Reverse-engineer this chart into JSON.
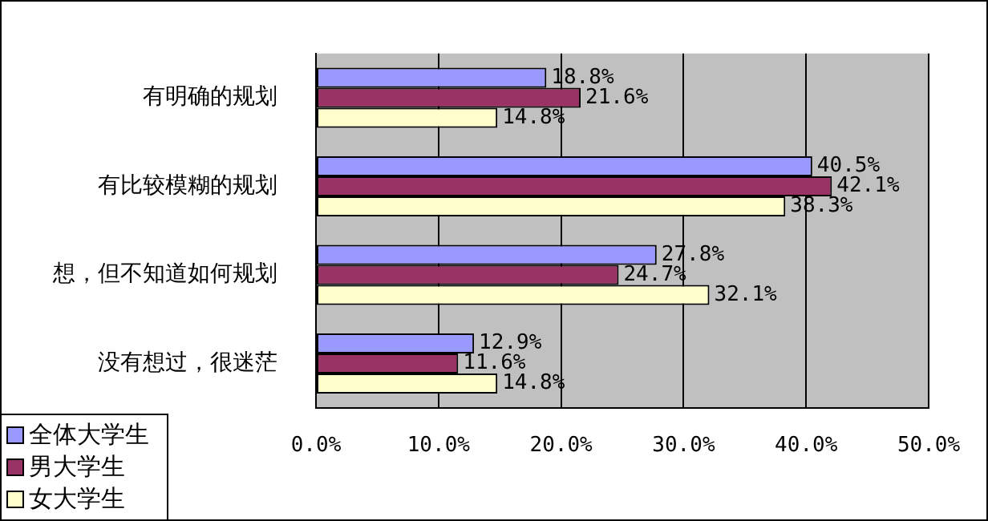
{
  "chart_data": {
    "type": "bar",
    "orientation": "horizontal",
    "categories": [
      "有明确的规划",
      "有比较模糊的规划",
      "想，但不知道如何规划",
      "没有想过，很迷茫"
    ],
    "series": [
      {
        "name": "全体大学生",
        "color": "#9999ff",
        "values": [
          18.8,
          40.5,
          27.8,
          12.9
        ],
        "value_labels": [
          "18.8%",
          "40.5%",
          "27.8%",
          "12.9%"
        ]
      },
      {
        "name": "男大学生",
        "color": "#993366",
        "values": [
          21.6,
          42.1,
          24.7,
          11.6
        ],
        "value_labels": [
          "21.6%",
          "42.1%",
          "24.7%",
          "11.6%"
        ]
      },
      {
        "name": "女大学生",
        "color": "#ffffcc",
        "values": [
          14.8,
          38.3,
          32.1,
          14.8
        ],
        "value_labels": [
          "14.8%",
          "38.3%",
          "32.1%",
          "14.8%"
        ]
      }
    ],
    "xlim": [
      0,
      50
    ],
    "xticks": [
      {
        "value": 0,
        "label": "0.0%"
      },
      {
        "value": 10,
        "label": "10.0%"
      },
      {
        "value": 20,
        "label": "20.0%"
      },
      {
        "value": 30,
        "label": "30.0%"
      },
      {
        "value": 40,
        "label": "40.0%"
      },
      {
        "value": 50,
        "label": "50.0%"
      }
    ],
    "grid": "x",
    "legend": "bottom left"
  }
}
